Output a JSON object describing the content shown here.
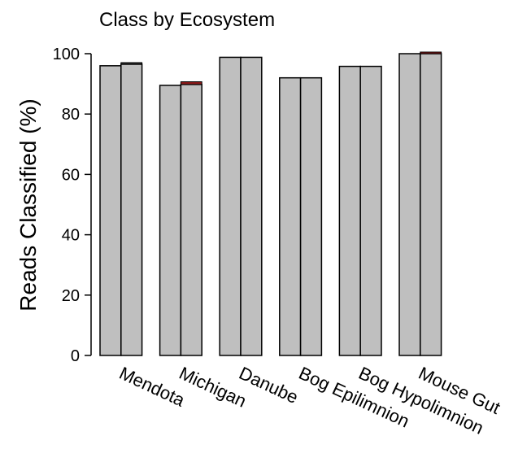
{
  "chart_data": {
    "type": "bar",
    "title": "Class by Ecosystem",
    "xlabel": "",
    "ylabel": "Reads Classified (%)",
    "ylim": [
      0,
      100
    ],
    "yticks": [
      "0",
      "20",
      "40",
      "60",
      "80",
      "100"
    ],
    "categories": [
      "Mendota",
      "Michigan",
      "Danube",
      "Bog Epilimnion",
      "Bog Hypolimnion",
      "Mouse Gut"
    ],
    "bars_per_category": 2,
    "series": [
      {
        "values": [
          96,
          89.5,
          98.8,
          92,
          95.8,
          100
        ],
        "color": "#bfbfbf"
      },
      {
        "values": [
          96.5,
          89.8,
          98.8,
          92,
          95.8,
          100
        ],
        "color": "#bfbfbf"
      }
    ],
    "top_segments": [
      {
        "values": [
          0.4,
          0,
          0,
          0,
          0,
          0
        ],
        "color": "#333333"
      },
      {
        "values": [
          0,
          0.9,
          0,
          0,
          0,
          0.3
        ],
        "color": "#8b1a1a"
      }
    ],
    "grid": false,
    "legend": "none"
  }
}
